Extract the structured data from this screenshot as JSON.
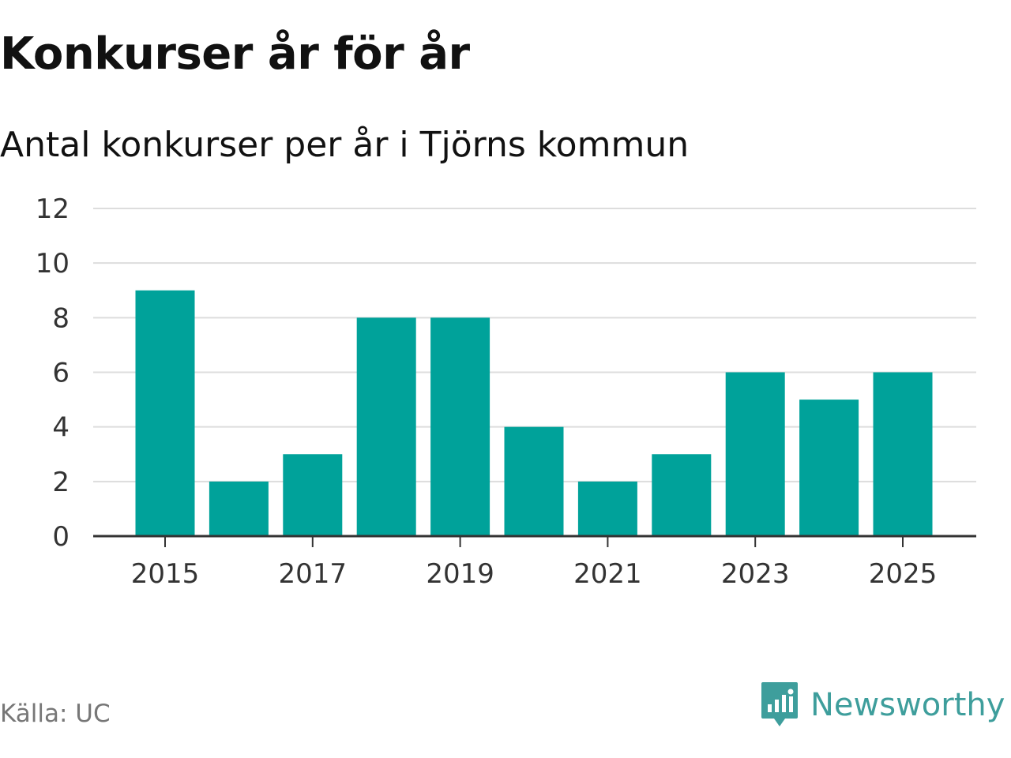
{
  "title": "Konkurser år för år",
  "subtitle": "Antal konkurser per år i Tjörns kommun",
  "source": "Källa: UC",
  "brand": {
    "name": "Newsworthy",
    "icon": "newsworthy-logo-icon"
  },
  "colors": {
    "bar": "#00a29a",
    "grid": "#dddddd",
    "axis": "#333333",
    "brand": "#3e9e9c"
  },
  "chart_data": {
    "type": "bar",
    "categories": [
      "2015",
      "2016",
      "2017",
      "2018",
      "2019",
      "2020",
      "2021",
      "2022",
      "2023",
      "2024",
      "2025"
    ],
    "values": [
      9,
      2,
      3,
      8,
      8,
      4,
      2,
      3,
      6,
      5,
      6
    ],
    "x_tick_labels": [
      "2015",
      "2017",
      "2019",
      "2021",
      "2023",
      "2025"
    ],
    "y_ticks": [
      0,
      2,
      4,
      6,
      8,
      10,
      12
    ],
    "ylim": [
      0,
      12
    ],
    "xlabel": "",
    "ylabel": "",
    "grid": true,
    "legend": "none"
  }
}
